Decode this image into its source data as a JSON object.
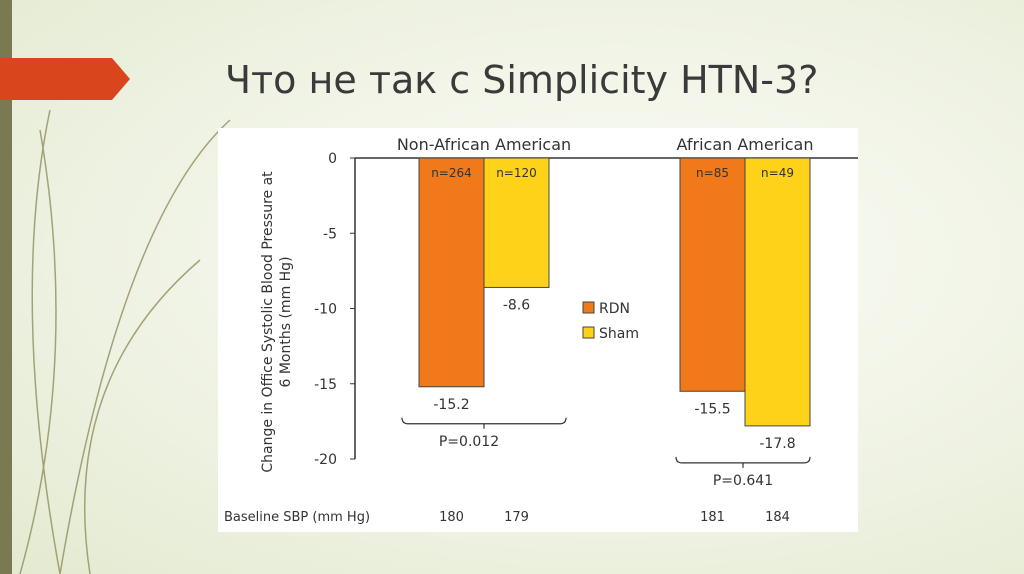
{
  "slide_title": "Что не так с Simplicity HTN-3?",
  "chart_data": {
    "type": "bar",
    "y_label": "Change in Office Systolic Blood Pressure at 6 Months (mm Hg)",
    "categories": [
      "Non-African American",
      "African American"
    ],
    "series": [
      {
        "name": "RDN",
        "color": "#f07a1a",
        "values": [
          -15.2,
          -15.5
        ],
        "n_labels": [
          "n=264",
          "n=85"
        ],
        "baseline": [
          180,
          181
        ]
      },
      {
        "name": "Sham",
        "color": "#ffd21a",
        "values": [
          -8.6,
          -17.8
        ],
        "n_labels": [
          "n=120",
          "n=49"
        ],
        "baseline": [
          179,
          184
        ]
      }
    ],
    "p_values": [
      "P=0.012",
      "P=0.641"
    ],
    "baseline_label": "Baseline SBP (mm Hg)",
    "ylim": [
      -20,
      0
    ],
    "yticks": [
      0,
      -5,
      -10,
      -15,
      -20
    ]
  }
}
